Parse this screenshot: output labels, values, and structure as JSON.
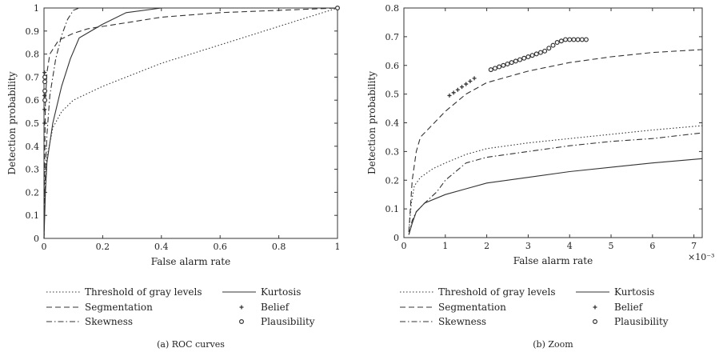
{
  "chart_data": [
    {
      "type": "line",
      "caption": "(a) ROC curves",
      "xlabel": "False alarm rate",
      "ylabel": "Detection probability",
      "xlim": [
        0,
        1
      ],
      "ylim": [
        0,
        1
      ],
      "xticks": [
        "0",
        "0.2",
        "0.4",
        "0.6",
        "0.8",
        "1"
      ],
      "yticks": [
        "0",
        "0.1",
        "0.2",
        "0.3",
        "0.4",
        "0.5",
        "0.6",
        "0.7",
        "0.8",
        "0.9",
        "1"
      ],
      "grid": false,
      "series": [
        {
          "name": "Threshold of gray levels",
          "style": "dotted",
          "x": [
            0,
            0.003,
            0.01,
            0.03,
            0.06,
            0.1,
            0.2,
            0.3,
            0.4,
            0.5,
            0.6,
            0.7,
            0.8,
            0.9,
            1
          ],
          "y": [
            0,
            0.2,
            0.35,
            0.48,
            0.55,
            0.6,
            0.66,
            0.71,
            0.76,
            0.8,
            0.84,
            0.88,
            0.92,
            0.96,
            1
          ]
        },
        {
          "name": "Segmentation",
          "style": "dashed",
          "x": [
            0,
            0.002,
            0.005,
            0.01,
            0.02,
            0.05,
            0.1,
            0.15,
            0.2,
            0.3,
            0.4,
            0.6,
            0.8,
            1
          ],
          "y": [
            0,
            0.3,
            0.6,
            0.72,
            0.8,
            0.86,
            0.89,
            0.91,
            0.92,
            0.94,
            0.96,
            0.98,
            0.99,
            1
          ]
        },
        {
          "name": "Skewness",
          "style": "dashdot",
          "x": [
            0,
            0.005,
            0.01,
            0.02,
            0.04,
            0.06,
            0.08,
            0.1,
            0.12,
            0.2,
            0.4,
            1
          ],
          "y": [
            0,
            0.3,
            0.45,
            0.62,
            0.78,
            0.88,
            0.95,
            0.99,
            1,
            1,
            1,
            1
          ]
        },
        {
          "name": "Kurtosis",
          "style": "solid",
          "x": [
            0,
            0.005,
            0.01,
            0.03,
            0.06,
            0.09,
            0.12,
            0.2,
            0.28,
            0.4,
            0.6,
            1
          ],
          "y": [
            0,
            0.2,
            0.33,
            0.5,
            0.66,
            0.78,
            0.87,
            0.93,
            0.98,
            1,
            1,
            1
          ]
        },
        {
          "name": "Belief",
          "style": "marker-plus",
          "x": [
            0.002,
            0.002,
            0.002,
            0.002,
            0.002
          ],
          "y": [
            0.5,
            0.56,
            0.62,
            0.68,
            0.72
          ]
        },
        {
          "name": "Plausibility",
          "style": "marker-circle",
          "x": [
            0.003,
            0.003,
            0.003,
            0.003,
            1
          ],
          "y": [
            0.6,
            0.64,
            0.68,
            0.7,
            1
          ]
        }
      ]
    },
    {
      "type": "line",
      "caption": "(b) Zoom",
      "xlabel": "False alarm rate",
      "ylabel": "Detection probability",
      "xlim": [
        0,
        0.0072
      ],
      "ylim": [
        0,
        0.8
      ],
      "xticks": [
        "0",
        "1",
        "2",
        "3",
        "4",
        "5",
        "6",
        "7"
      ],
      "yticks": [
        "0",
        "0.1",
        "0.2",
        "0.3",
        "0.4",
        "0.5",
        "0.6",
        "0.7",
        "0.8"
      ],
      "xexponent": "×10⁻³",
      "grid": false,
      "series": [
        {
          "name": "Threshold of gray levels",
          "style": "dotted",
          "x": [
            0.00012,
            0.00018,
            0.00025,
            0.0004,
            0.0007,
            0.001,
            0.0015,
            0.002,
            0.003,
            0.004,
            0.005,
            0.006,
            0.0072
          ],
          "y": [
            0.02,
            0.12,
            0.18,
            0.21,
            0.24,
            0.26,
            0.29,
            0.31,
            0.33,
            0.345,
            0.36,
            0.375,
            0.39
          ]
        },
        {
          "name": "Segmentation",
          "style": "dashed",
          "x": [
            0.00012,
            0.0002,
            0.0003,
            0.0004,
            0.0006,
            0.001,
            0.0015,
            0.002,
            0.003,
            0.004,
            0.005,
            0.006,
            0.0072
          ],
          "y": [
            0.02,
            0.2,
            0.3,
            0.35,
            0.38,
            0.44,
            0.5,
            0.54,
            0.58,
            0.61,
            0.63,
            0.645,
            0.655
          ]
        },
        {
          "name": "Skewness",
          "style": "dashdot",
          "x": [
            0.00012,
            0.0002,
            0.0003,
            0.0005,
            0.0008,
            0.001,
            0.0015,
            0.002,
            0.003,
            0.004,
            0.005,
            0.006,
            0.0072
          ],
          "y": [
            0.01,
            0.06,
            0.09,
            0.12,
            0.16,
            0.2,
            0.26,
            0.28,
            0.3,
            0.32,
            0.335,
            0.345,
            0.365
          ]
        },
        {
          "name": "Kurtosis",
          "style": "solid",
          "x": [
            0.00012,
            0.0002,
            0.0003,
            0.0005,
            0.001,
            0.0015,
            0.002,
            0.003,
            0.004,
            0.005,
            0.006,
            0.0072
          ],
          "y": [
            0.01,
            0.05,
            0.09,
            0.12,
            0.15,
            0.17,
            0.19,
            0.21,
            0.23,
            0.245,
            0.26,
            0.275
          ]
        },
        {
          "name": "Belief",
          "style": "marker-plus",
          "x": [
            0.0011,
            0.0012,
            0.0013,
            0.0014,
            0.0015,
            0.0016,
            0.0017
          ],
          "y": [
            0.495,
            0.505,
            0.515,
            0.525,
            0.535,
            0.545,
            0.555
          ]
        },
        {
          "name": "Plausibility",
          "style": "marker-circle",
          "x": [
            0.0021,
            0.0022,
            0.0023,
            0.0024,
            0.0025,
            0.0026,
            0.0027,
            0.0028,
            0.0029,
            0.003,
            0.0031,
            0.0032,
            0.0033,
            0.0034,
            0.0035,
            0.0036,
            0.0037,
            0.0038,
            0.0039,
            0.004,
            0.0041,
            0.0042,
            0.0043,
            0.0044
          ],
          "y": [
            0.585,
            0.59,
            0.595,
            0.6,
            0.605,
            0.61,
            0.615,
            0.62,
            0.625,
            0.63,
            0.635,
            0.64,
            0.645,
            0.65,
            0.66,
            0.67,
            0.68,
            0.685,
            0.69,
            0.69,
            0.69,
            0.69,
            0.69,
            0.69
          ]
        }
      ]
    }
  ],
  "legend": {
    "items": [
      {
        "label": "Threshold of gray levels",
        "style": "dotted"
      },
      {
        "label": "Segmentation",
        "style": "dashed"
      },
      {
        "label": "Skewness",
        "style": "dashdot"
      },
      {
        "label": "Kurtosis",
        "style": "solid"
      },
      {
        "label": "Belief",
        "style": "marker-plus"
      },
      {
        "label": "Plausibility",
        "style": "marker-circle"
      }
    ]
  },
  "colors": {
    "axis": "#333333",
    "line": "#333333"
  }
}
